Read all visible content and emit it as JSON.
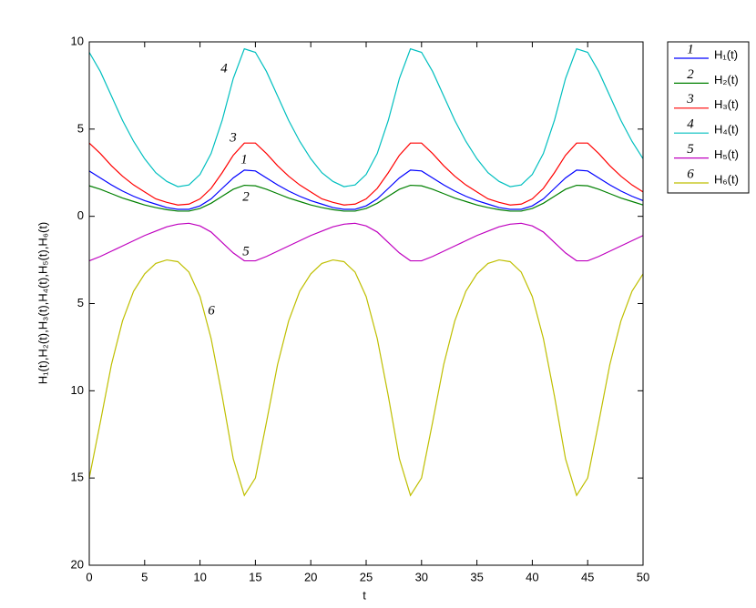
{
  "chart_data": {
    "type": "line",
    "xlabel": "t",
    "ylabel": "H₁(t),H₂(t),H₃(t),H₄(t),H₅(t),H₆(t)",
    "x": [
      0,
      1,
      2,
      3,
      4,
      5,
      6,
      7,
      8,
      9,
      10,
      11,
      12,
      13,
      14,
      15,
      16,
      17,
      18,
      19,
      20,
      21,
      22,
      23,
      24,
      25,
      26,
      27,
      28,
      29,
      30,
      31,
      32,
      33,
      34,
      35,
      36,
      37,
      38,
      39,
      40,
      41,
      42,
      43,
      44,
      45,
      46,
      47,
      48,
      49,
      50
    ],
    "xlim": [
      0,
      50
    ],
    "xticks": [
      0,
      5,
      10,
      15,
      20,
      25,
      30,
      35,
      40,
      45,
      50
    ],
    "ylim": [
      -20,
      10
    ],
    "yticks": [
      {
        "value": -20,
        "label": "20"
      },
      {
        "value": -15,
        "label": "15"
      },
      {
        "value": -10,
        "label": "10"
      },
      {
        "value": -5,
        "label": "5"
      },
      0,
      5,
      10
    ],
    "legend": "outside-right",
    "series": [
      {
        "name": "H₁(t)",
        "label": "1",
        "color": "#0000ff",
        "values": [
          2.6,
          2.2,
          1.8,
          1.45,
          1.15,
          0.9,
          0.7,
          0.5,
          0.4,
          0.4,
          0.6,
          1.0,
          1.6,
          2.2,
          2.65,
          2.6,
          2.2,
          1.8,
          1.45,
          1.15,
          0.9,
          0.7,
          0.5,
          0.4,
          0.4,
          0.6,
          1.0,
          1.6,
          2.2,
          2.65,
          2.6,
          2.2,
          1.8,
          1.45,
          1.15,
          0.9,
          0.7,
          0.5,
          0.4,
          0.4,
          0.6,
          1.0,
          1.6,
          2.2,
          2.65,
          2.6,
          2.2,
          1.8,
          1.45,
          1.15,
          0.9
        ]
      },
      {
        "name": "H₂(t)",
        "label": "2",
        "color": "#008000",
        "values": [
          1.75,
          1.55,
          1.3,
          1.05,
          0.85,
          0.65,
          0.5,
          0.38,
          0.3,
          0.3,
          0.45,
          0.75,
          1.15,
          1.55,
          1.78,
          1.75,
          1.55,
          1.3,
          1.05,
          0.85,
          0.65,
          0.5,
          0.38,
          0.3,
          0.3,
          0.45,
          0.75,
          1.15,
          1.55,
          1.78,
          1.75,
          1.55,
          1.3,
          1.05,
          0.85,
          0.65,
          0.5,
          0.38,
          0.3,
          0.3,
          0.45,
          0.75,
          1.15,
          1.55,
          1.78,
          1.75,
          1.55,
          1.3,
          1.05,
          0.85,
          0.65
        ]
      },
      {
        "name": "H₃(t)",
        "label": "3",
        "color": "#ff0000",
        "values": [
          4.2,
          3.6,
          2.9,
          2.3,
          1.8,
          1.4,
          1.0,
          0.8,
          0.65,
          0.7,
          1.0,
          1.6,
          2.5,
          3.5,
          4.2,
          4.2,
          3.6,
          2.9,
          2.3,
          1.8,
          1.4,
          1.0,
          0.8,
          0.65,
          0.7,
          1.0,
          1.6,
          2.5,
          3.5,
          4.2,
          4.2,
          3.6,
          2.9,
          2.3,
          1.8,
          1.4,
          1.0,
          0.8,
          0.65,
          0.7,
          1.0,
          1.6,
          2.5,
          3.5,
          4.2,
          4.2,
          3.6,
          2.9,
          2.3,
          1.8,
          1.4
        ]
      },
      {
        "name": "H₄(t)",
        "label": "4",
        "color": "#00bfbf",
        "values": [
          9.4,
          8.3,
          6.9,
          5.5,
          4.3,
          3.3,
          2.5,
          2.0,
          1.7,
          1.8,
          2.4,
          3.6,
          5.5,
          7.9,
          9.6,
          9.4,
          8.3,
          6.9,
          5.5,
          4.3,
          3.3,
          2.5,
          2.0,
          1.7,
          1.8,
          2.4,
          3.6,
          5.5,
          7.9,
          9.6,
          9.4,
          8.3,
          6.9,
          5.5,
          4.3,
          3.3,
          2.5,
          2.0,
          1.7,
          1.8,
          2.4,
          3.6,
          5.5,
          7.9,
          9.6,
          9.4,
          8.3,
          6.9,
          5.5,
          4.3,
          3.3
        ]
      },
      {
        "name": "H₅(t)",
        "label": "5",
        "color": "#bf00bf",
        "values": [
          -2.55,
          -2.3,
          -2.0,
          -1.7,
          -1.4,
          -1.1,
          -0.85,
          -0.6,
          -0.45,
          -0.4,
          -0.55,
          -0.9,
          -1.5,
          -2.1,
          -2.55,
          -2.55,
          -2.3,
          -2.0,
          -1.7,
          -1.4,
          -1.1,
          -0.85,
          -0.6,
          -0.45,
          -0.4,
          -0.55,
          -0.9,
          -1.5,
          -2.1,
          -2.55,
          -2.55,
          -2.3,
          -2.0,
          -1.7,
          -1.4,
          -1.1,
          -0.85,
          -0.6,
          -0.45,
          -0.4,
          -0.55,
          -0.9,
          -1.5,
          -2.1,
          -2.55,
          -2.55,
          -2.3,
          -2.0,
          -1.7,
          -1.4,
          -1.1
        ]
      },
      {
        "name": "H₆(t)",
        "label": "6",
        "color": "#bfbf00",
        "values": [
          -15.0,
          -11.8,
          -8.5,
          -6.0,
          -4.3,
          -3.3,
          -2.7,
          -2.5,
          -2.6,
          -3.2,
          -4.6,
          -7.0,
          -10.3,
          -13.9,
          -16.0,
          -15.0,
          -11.8,
          -8.5,
          -6.0,
          -4.3,
          -3.3,
          -2.7,
          -2.5,
          -2.6,
          -3.2,
          -4.6,
          -7.0,
          -10.3,
          -13.9,
          -16.0,
          -15.0,
          -11.8,
          -8.5,
          -6.0,
          -4.3,
          -3.3,
          -2.7,
          -2.5,
          -2.6,
          -3.2,
          -4.6,
          -7.0,
          -10.3,
          -13.9,
          -16.0,
          -15.0,
          -11.8,
          -8.5,
          -6.0,
          -4.3,
          -3.3
        ]
      }
    ]
  }
}
